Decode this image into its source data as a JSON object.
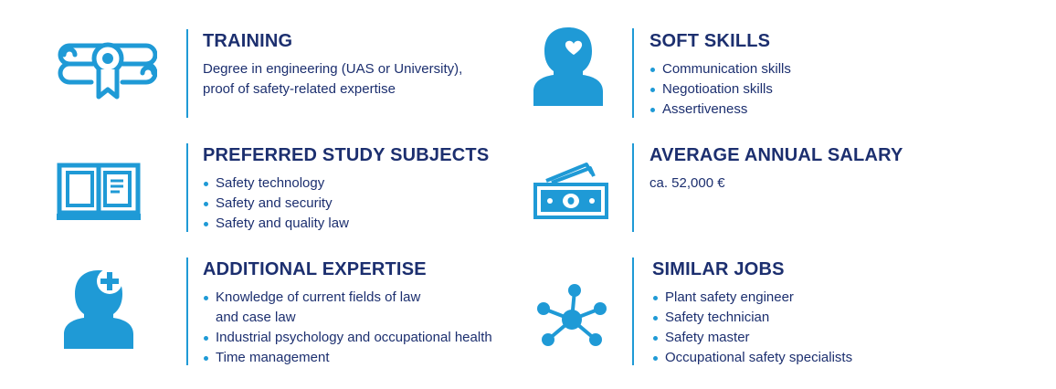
{
  "colors": {
    "accent": "#1f9ad6",
    "text": "#1c2f6f",
    "background": "#ffffff"
  },
  "sections": {
    "training": {
      "icon": "diploma-icon",
      "title": "TRAINING",
      "lines": [
        "Degree in engineering (UAS or University),",
        "proof of safety-related expertise"
      ]
    },
    "soft_skills": {
      "icon": "person-heart-icon",
      "title": "SOFT SKILLS",
      "items": [
        "Communication skills",
        "Negotioation skills",
        "Assertiveness"
      ]
    },
    "study_subjects": {
      "icon": "open-book-icon",
      "title": "PREFERRED STUDY SUBJECTS",
      "items": [
        "Safety technology",
        "Safety and security",
        "Safety and quality law"
      ]
    },
    "salary": {
      "icon": "money-icon",
      "title": "AVERAGE ANNUAL SALARY",
      "text": "ca. 52,000 €"
    },
    "expertise": {
      "icon": "person-plus-icon",
      "title": "ADDITIONAL EXPERTISE",
      "items": [
        {
          "line1": "Knowledge of current fields of law",
          "line2": "and case law"
        },
        {
          "line1": "Industrial psychology and occupational health",
          "line2": ""
        },
        {
          "line1": "Time management",
          "line2": ""
        }
      ]
    },
    "similar_jobs": {
      "icon": "network-icon",
      "title": "SIMILAR JOBS",
      "items": [
        "Plant safety engineer",
        "Safety technician",
        "Safety master",
        "Occupational safety specialists"
      ]
    }
  }
}
